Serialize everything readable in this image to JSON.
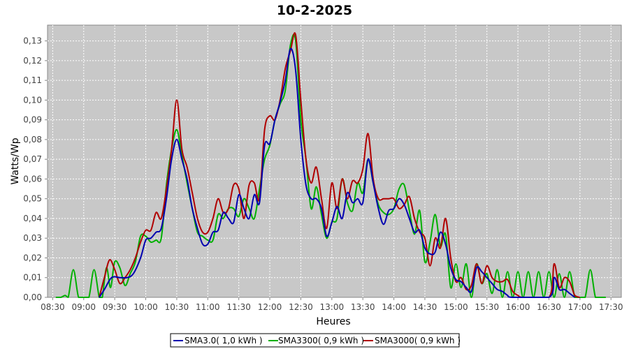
{
  "chart_data": {
    "type": "line",
    "title": "10-2-2025",
    "xlabel": "Heures",
    "ylabel": "Watts/Wp",
    "x_ticks": [
      "08:30",
      "09:00",
      "09:30",
      "10:00",
      "10:30",
      "11:00",
      "11:30",
      "12:00",
      "12:30",
      "13:00",
      "13:30",
      "14:00",
      "14:30",
      "15:00",
      "15:30",
      "16:00",
      "16:30",
      "17:00",
      "17:30"
    ],
    "xlim": [
      "08:25",
      "17:40"
    ],
    "ylim": [
      0,
      0.138
    ],
    "y_ticks": [
      "0,00",
      "0,01",
      "0,02",
      "0,03",
      "0,04",
      "0,05",
      "0,06",
      "0,07",
      "0,08",
      "0,09",
      "0,10",
      "0,11",
      "0,12",
      "0,13"
    ],
    "grid": true,
    "legend_position": "bottom",
    "series": [
      {
        "name": "SMA3.0( 1,0 kWh )",
        "color": "#0000b0",
        "points": [
          [
            "09:15",
            0
          ],
          [
            "09:20",
            0.004
          ],
          [
            "09:27",
            0.01
          ],
          [
            "09:35",
            0.01
          ],
          [
            "09:42",
            0.01
          ],
          [
            "09:48",
            0.012
          ],
          [
            "09:55",
            0.02
          ],
          [
            "10:00",
            0.029
          ],
          [
            "10:05",
            0.03
          ],
          [
            "10:10",
            0.033
          ],
          [
            "10:15",
            0.035
          ],
          [
            "10:20",
            0.05
          ],
          [
            "10:25",
            0.07
          ],
          [
            "10:30",
            0.08
          ],
          [
            "10:35",
            0.07
          ],
          [
            "10:40",
            0.06
          ],
          [
            "10:45",
            0.045
          ],
          [
            "10:50",
            0.035
          ],
          [
            "10:55",
            0.027
          ],
          [
            "11:00",
            0.027
          ],
          [
            "11:05",
            0.033
          ],
          [
            "11:10",
            0.034
          ],
          [
            "11:15",
            0.043
          ],
          [
            "11:20",
            0.04
          ],
          [
            "11:25",
            0.038
          ],
          [
            "11:30",
            0.052
          ],
          [
            "11:35",
            0.045
          ],
          [
            "11:40",
            0.04
          ],
          [
            "11:45",
            0.052
          ],
          [
            "11:50",
            0.048
          ],
          [
            "11:55",
            0.077
          ],
          [
            "12:00",
            0.078
          ],
          [
            "12:05",
            0.09
          ],
          [
            "12:10",
            0.099
          ],
          [
            "12:15",
            0.11
          ],
          [
            "12:20",
            0.126
          ],
          [
            "12:25",
            0.115
          ],
          [
            "12:30",
            0.08
          ],
          [
            "12:35",
            0.057
          ],
          [
            "12:40",
            0.05
          ],
          [
            "12:45",
            0.05
          ],
          [
            "12:50",
            0.045
          ],
          [
            "12:55",
            0.031
          ],
          [
            "13:00",
            0.038
          ],
          [
            "13:05",
            0.046
          ],
          [
            "13:10",
            0.04
          ],
          [
            "13:15",
            0.053
          ],
          [
            "13:20",
            0.048
          ],
          [
            "13:25",
            0.05
          ],
          [
            "13:30",
            0.048
          ],
          [
            "13:35",
            0.07
          ],
          [
            "13:40",
            0.058
          ],
          [
            "13:45",
            0.045
          ],
          [
            "13:50",
            0.037
          ],
          [
            "13:55",
            0.044
          ],
          [
            "14:00",
            0.045
          ],
          [
            "14:05",
            0.05
          ],
          [
            "14:10",
            0.047
          ],
          [
            "14:15",
            0.04
          ],
          [
            "14:20",
            0.033
          ],
          [
            "14:25",
            0.034
          ],
          [
            "14:30",
            0.025
          ],
          [
            "14:35",
            0.022
          ],
          [
            "14:40",
            0.023
          ],
          [
            "14:45",
            0.033
          ],
          [
            "14:50",
            0.027
          ],
          [
            "14:55",
            0.015
          ],
          [
            "15:00",
            0.009
          ],
          [
            "15:05",
            0.008
          ],
          [
            "15:10",
            0.005
          ],
          [
            "15:15",
            0.003
          ],
          [
            "15:20",
            0.015
          ],
          [
            "15:25",
            0.013
          ],
          [
            "15:30",
            0.01
          ],
          [
            "15:35",
            0.007
          ],
          [
            "15:40",
            0.004
          ],
          [
            "15:45",
            0.003
          ],
          [
            "15:50",
            0.001
          ],
          [
            "15:55",
            0.0
          ],
          [
            "16:30",
            0.0
          ],
          [
            "16:35",
            0.01
          ],
          [
            "16:40",
            0.004
          ],
          [
            "16:45",
            0.004
          ],
          [
            "16:50",
            0.002
          ],
          [
            "16:55",
            0
          ]
        ]
      },
      {
        "name": "SMA3300( 0,9 kWh )",
        "color": "#00b000",
        "points": [
          [
            "08:33",
            0
          ],
          [
            "08:38",
            0
          ],
          [
            "08:42",
            0.001
          ],
          [
            "08:45",
            0
          ],
          [
            "08:50",
            0.014
          ],
          [
            "08:55",
            0
          ],
          [
            "09:00",
            0
          ],
          [
            "09:05",
            0
          ],
          [
            "09:10",
            0.014
          ],
          [
            "09:15",
            0
          ],
          [
            "09:18",
            0
          ],
          [
            "09:22",
            0.015
          ],
          [
            "09:26",
            0.005
          ],
          [
            "09:30",
            0.018
          ],
          [
            "09:35",
            0.015
          ],
          [
            "09:40",
            0.006
          ],
          [
            "09:45",
            0.012
          ],
          [
            "09:50",
            0.018
          ],
          [
            "09:55",
            0.031
          ],
          [
            "10:00",
            0.031
          ],
          [
            "10:05",
            0.028
          ],
          [
            "10:10",
            0.029
          ],
          [
            "10:15",
            0.03
          ],
          [
            "10:20",
            0.057
          ],
          [
            "10:25",
            0.075
          ],
          [
            "10:30",
            0.085
          ],
          [
            "10:35",
            0.072
          ],
          [
            "10:40",
            0.058
          ],
          [
            "10:45",
            0.045
          ],
          [
            "10:50",
            0.033
          ],
          [
            "10:55",
            0.031
          ],
          [
            "11:00",
            0.029
          ],
          [
            "11:05",
            0.029
          ],
          [
            "11:10",
            0.042
          ],
          [
            "11:15",
            0.04
          ],
          [
            "11:20",
            0.045
          ],
          [
            "11:25",
            0.045
          ],
          [
            "11:30",
            0.041
          ],
          [
            "11:35",
            0.05
          ],
          [
            "11:40",
            0.045
          ],
          [
            "11:45",
            0.04
          ],
          [
            "11:50",
            0.055
          ],
          [
            "11:55",
            0.07
          ],
          [
            "12:00",
            0.077
          ],
          [
            "12:05",
            0.09
          ],
          [
            "12:10",
            0.098
          ],
          [
            "12:15",
            0.105
          ],
          [
            "12:20",
            0.128
          ],
          [
            "12:25",
            0.13
          ],
          [
            "12:30",
            0.09
          ],
          [
            "12:35",
            0.07
          ],
          [
            "12:40",
            0.045
          ],
          [
            "12:45",
            0.056
          ],
          [
            "12:50",
            0.042
          ],
          [
            "12:55",
            0.03
          ],
          [
            "13:00",
            0.038
          ],
          [
            "13:05",
            0.04
          ],
          [
            "13:10",
            0.06
          ],
          [
            "13:15",
            0.048
          ],
          [
            "13:20",
            0.044
          ],
          [
            "13:25",
            0.058
          ],
          [
            "13:30",
            0.053
          ],
          [
            "13:35",
            0.07
          ],
          [
            "13:40",
            0.058
          ],
          [
            "13:45",
            0.047
          ],
          [
            "13:50",
            0.043
          ],
          [
            "13:55",
            0.042
          ],
          [
            "14:00",
            0.045
          ],
          [
            "14:05",
            0.055
          ],
          [
            "14:10",
            0.057
          ],
          [
            "14:15",
            0.044
          ],
          [
            "14:20",
            0.032
          ],
          [
            "14:25",
            0.044
          ],
          [
            "14:30",
            0.018
          ],
          [
            "14:35",
            0.028
          ],
          [
            "14:40",
            0.042
          ],
          [
            "14:45",
            0.026
          ],
          [
            "14:50",
            0.032
          ],
          [
            "14:55",
            0.005
          ],
          [
            "15:00",
            0.017
          ],
          [
            "15:05",
            0.005
          ],
          [
            "15:10",
            0.017
          ],
          [
            "15:15",
            0.0
          ],
          [
            "15:20",
            0.017
          ],
          [
            "15:25",
            0.007
          ],
          [
            "15:30",
            0.012
          ],
          [
            "15:35",
            0.002
          ],
          [
            "15:40",
            0.014
          ],
          [
            "15:45",
            0.0
          ],
          [
            "15:50",
            0.013
          ],
          [
            "15:55",
            0.0
          ],
          [
            "16:00",
            0.013
          ],
          [
            "16:05",
            0.0
          ],
          [
            "16:10",
            0.013
          ],
          [
            "16:15",
            0.0
          ],
          [
            "16:20",
            0.013
          ],
          [
            "16:25",
            0.0
          ],
          [
            "16:30",
            0.013
          ],
          [
            "16:35",
            0.0
          ],
          [
            "16:40",
            0.012
          ],
          [
            "16:45",
            0.0
          ],
          [
            "16:50",
            0.013
          ],
          [
            "16:55",
            0.0
          ],
          [
            "17:00",
            0.0
          ],
          [
            "17:05",
            0.0
          ],
          [
            "17:10",
            0.014
          ],
          [
            "17:15",
            0.0
          ],
          [
            "17:20",
            0.0
          ],
          [
            "17:25",
            0.0
          ]
        ]
      },
      {
        "name": "SMA3000( 0,9 kWh )",
        "color": "#b00000",
        "points": [
          [
            "09:15",
            0
          ],
          [
            "09:20",
            0.01
          ],
          [
            "09:25",
            0.019
          ],
          [
            "09:30",
            0.014
          ],
          [
            "09:35",
            0.007
          ],
          [
            "09:40",
            0.01
          ],
          [
            "09:45",
            0.014
          ],
          [
            "09:50",
            0.02
          ],
          [
            "09:55",
            0.028
          ],
          [
            "10:00",
            0.034
          ],
          [
            "10:05",
            0.034
          ],
          [
            "10:10",
            0.043
          ],
          [
            "10:15",
            0.04
          ],
          [
            "10:20",
            0.055
          ],
          [
            "10:25",
            0.075
          ],
          [
            "10:30",
            0.1
          ],
          [
            "10:35",
            0.075
          ],
          [
            "10:40",
            0.066
          ],
          [
            "10:45",
            0.053
          ],
          [
            "10:50",
            0.04
          ],
          [
            "10:55",
            0.033
          ],
          [
            "11:00",
            0.033
          ],
          [
            "11:05",
            0.04
          ],
          [
            "11:10",
            0.05
          ],
          [
            "11:15",
            0.043
          ],
          [
            "11:20",
            0.045
          ],
          [
            "11:25",
            0.057
          ],
          [
            "11:30",
            0.055
          ],
          [
            "11:35",
            0.04
          ],
          [
            "11:40",
            0.057
          ],
          [
            "11:45",
            0.058
          ],
          [
            "11:50",
            0.05
          ],
          [
            "11:55",
            0.085
          ],
          [
            "12:00",
            0.092
          ],
          [
            "12:05",
            0.09
          ],
          [
            "12:10",
            0.1
          ],
          [
            "12:15",
            0.116
          ],
          [
            "12:20",
            0.125
          ],
          [
            "12:25",
            0.133
          ],
          [
            "12:30",
            0.1
          ],
          [
            "12:35",
            0.07
          ],
          [
            "12:40",
            0.058
          ],
          [
            "12:45",
            0.066
          ],
          [
            "12:50",
            0.05
          ],
          [
            "12:55",
            0.035
          ],
          [
            "13:00",
            0.058
          ],
          [
            "13:05",
            0.045
          ],
          [
            "13:10",
            0.06
          ],
          [
            "13:15",
            0.05
          ],
          [
            "13:20",
            0.059
          ],
          [
            "13:25",
            0.058
          ],
          [
            "13:30",
            0.065
          ],
          [
            "13:35",
            0.083
          ],
          [
            "13:40",
            0.06
          ],
          [
            "13:45",
            0.05
          ],
          [
            "13:50",
            0.05
          ],
          [
            "13:55",
            0.05
          ],
          [
            "14:00",
            0.05
          ],
          [
            "14:05",
            0.045
          ],
          [
            "14:10",
            0.047
          ],
          [
            "14:15",
            0.051
          ],
          [
            "14:20",
            0.04
          ],
          [
            "14:25",
            0.033
          ],
          [
            "14:30",
            0.03
          ],
          [
            "14:35",
            0.016
          ],
          [
            "14:40",
            0.03
          ],
          [
            "14:45",
            0.025
          ],
          [
            "14:50",
            0.04
          ],
          [
            "14:55",
            0.02
          ],
          [
            "15:00",
            0.008
          ],
          [
            "15:05",
            0.01
          ],
          [
            "15:10",
            0.004
          ],
          [
            "15:15",
            0.006
          ],
          [
            "15:20",
            0.017
          ],
          [
            "15:25",
            0.007
          ],
          [
            "15:30",
            0.016
          ],
          [
            "15:35",
            0.01
          ],
          [
            "15:40",
            0.008
          ],
          [
            "15:45",
            0.008
          ],
          [
            "15:50",
            0.009
          ],
          [
            "15:55",
            0.003
          ],
          [
            "16:00",
            0.001
          ],
          [
            "16:05",
            0.0
          ],
          [
            "16:30",
            0.0
          ],
          [
            "16:35",
            0.017
          ],
          [
            "16:40",
            0.005
          ],
          [
            "16:45",
            0.01
          ],
          [
            "16:50",
            0.008
          ],
          [
            "16:55",
            0.001
          ],
          [
            "17:00",
            0
          ]
        ]
      }
    ]
  }
}
